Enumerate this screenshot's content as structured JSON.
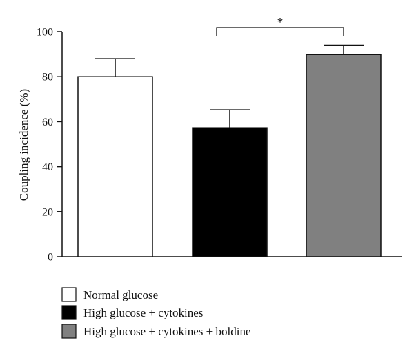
{
  "chart_data": {
    "type": "bar",
    "title": "",
    "xlabel": "",
    "ylabel": "Coupling incidence (%)",
    "ylim": [
      0,
      100
    ],
    "yticks": [
      0,
      20,
      40,
      60,
      80,
      100
    ],
    "grid": false,
    "legend_position": "bottom-left",
    "categories": [
      "Normal glucose",
      "High glucose + cytokines",
      "High glucose + cytokines + boldine"
    ],
    "values": [
      80,
      57.3,
      89.8
    ],
    "errors": [
      8,
      8,
      4.2
    ],
    "colors": [
      "#ffffff",
      "#000000",
      "#808080"
    ],
    "significance": [
      {
        "from": 1,
        "to": 2,
        "label": "*"
      }
    ]
  }
}
